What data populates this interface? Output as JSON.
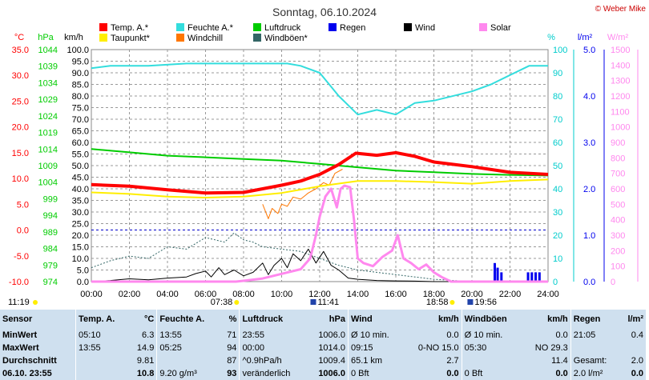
{
  "header": {
    "title": "Sonntag, 06.10.2024",
    "copyright": "© Weber Mike"
  },
  "legend": [
    {
      "label": "Temp. A.*",
      "color": "#ff0000"
    },
    {
      "label": "Feuchte A.*",
      "color": "#33dddd"
    },
    {
      "label": "Luftdruck",
      "color": "#00cc00"
    },
    {
      "label": "Regen",
      "color": "#0000ee"
    },
    {
      "label": "Wind",
      "color": "#000000"
    },
    {
      "label": "Solar",
      "color": "#ff88ee"
    },
    {
      "label": "Taupunkt*",
      "color": "#ffee00"
    },
    {
      "label": "Windchill",
      "color": "#ff7700"
    },
    {
      "label": "Windböen*",
      "color": "#336666"
    }
  ],
  "axis_units": {
    "temp": "°C",
    "pressure": "hPa",
    "wind": "km/h",
    "humidity": "%",
    "rain": "l/m²",
    "solar": "W/m²"
  },
  "axis_colors": {
    "temp": "#ff0000",
    "pressure": "#00cc00",
    "wind": "#000000",
    "humidity": "#00cccc",
    "rain": "#0000ee",
    "solar": "#ff88ee"
  },
  "time_markers": {
    "sunrise": "07:38",
    "sunset": "18:58",
    "moonrise": "11:41",
    "moonset": "19:56",
    "daylength": "11:19"
  },
  "chart_data": {
    "type": "line",
    "title": "Sonntag, 06.10.2024",
    "x_ticks": [
      "00:00",
      "02:00",
      "04:00",
      "06:00",
      "08:00",
      "10:00",
      "12:00",
      "14:00",
      "16:00",
      "18:00",
      "20:00",
      "22:00",
      "24:00"
    ],
    "axes": {
      "temp": {
        "unit": "°C",
        "range": [
          -10,
          35
        ],
        "ticks": [
          "35.0",
          "30.0",
          "25.0",
          "20.0",
          "15.0",
          "10.0",
          "5.0",
          "0.0",
          "-5.0",
          "-10.0"
        ]
      },
      "pressure": {
        "unit": "hPa",
        "range": [
          974,
          1044
        ],
        "ticks": [
          "1044",
          "1039",
          "1034",
          "1029",
          "1024",
          "1019",
          "1014",
          "1009",
          "1004",
          "999",
          "994",
          "989",
          "984",
          "979",
          "974"
        ]
      },
      "wind": {
        "unit": "km/h",
        "range": [
          0,
          100
        ],
        "ticks": [
          "100.0",
          "95.0",
          "90.0",
          "85.0",
          "80.0",
          "75.0",
          "70.0",
          "65.0",
          "60.0",
          "55.0",
          "50.0",
          "45.0",
          "40.0",
          "35.0",
          "30.0",
          "25.0",
          "20.0",
          "15.0",
          "10.0",
          "5.0",
          "0.0"
        ]
      },
      "humidity": {
        "unit": "%",
        "range": [
          0,
          100
        ],
        "ticks": [
          "100",
          "90",
          "80",
          "70",
          "60",
          "50",
          "40",
          "30",
          "20",
          "10",
          "0"
        ]
      },
      "rain": {
        "unit": "l/m²",
        "range": [
          0,
          5
        ],
        "ticks": [
          "5.0",
          "4.0",
          "3.0",
          "2.0",
          "1.0",
          "0.0"
        ]
      },
      "solar": {
        "unit": "W/m²",
        "range": [
          0,
          1500
        ],
        "ticks": [
          "1500",
          "1400",
          "1300",
          "1200",
          "1100",
          "1000",
          "900",
          "800",
          "700",
          "600",
          "500",
          "400",
          "300",
          "200",
          "100",
          "0"
        ]
      }
    },
    "series": [
      {
        "name": "Temp. A.*",
        "axis": "temp",
        "color": "#ff0000",
        "width": 4,
        "points": [
          [
            0,
            8.8
          ],
          [
            2,
            8.5
          ],
          [
            4,
            7.8
          ],
          [
            6,
            7.2
          ],
          [
            8,
            7.3
          ],
          [
            10,
            8.7
          ],
          [
            11,
            9.5
          ],
          [
            12,
            10.8
          ],
          [
            13,
            12.7
          ],
          [
            13.9,
            14.9
          ],
          [
            15,
            14.5
          ],
          [
            16,
            15.0
          ],
          [
            17,
            14.3
          ],
          [
            18,
            13.2
          ],
          [
            20,
            12.3
          ],
          [
            22,
            11.2
          ],
          [
            24,
            10.8
          ]
        ]
      },
      {
        "name": "Feuchte A.*",
        "axis": "humidity",
        "color": "#33dddd",
        "width": 2,
        "points": [
          [
            0,
            92
          ],
          [
            1,
            93
          ],
          [
            3,
            93
          ],
          [
            5,
            94
          ],
          [
            7,
            94
          ],
          [
            9,
            94
          ],
          [
            10.3,
            94
          ],
          [
            11,
            93
          ],
          [
            12,
            90
          ],
          [
            13,
            80
          ],
          [
            14,
            72
          ],
          [
            15,
            74
          ],
          [
            16,
            72
          ],
          [
            17,
            77
          ],
          [
            18,
            78
          ],
          [
            20,
            82
          ],
          [
            21,
            85
          ],
          [
            22,
            89
          ],
          [
            23,
            93
          ],
          [
            24,
            93
          ]
        ]
      },
      {
        "name": "Luftdruck",
        "axis": "pressure",
        "color": "#00cc00",
        "width": 2,
        "points": [
          [
            0,
            1014
          ],
          [
            2,
            1013
          ],
          [
            4,
            1012
          ],
          [
            6,
            1011.5
          ],
          [
            8,
            1011
          ],
          [
            10,
            1010.5
          ],
          [
            12,
            1009.5
          ],
          [
            14,
            1008.5
          ],
          [
            16,
            1007.5
          ],
          [
            18,
            1007
          ],
          [
            20,
            1006.5
          ],
          [
            22,
            1006.2
          ],
          [
            24,
            1006
          ]
        ]
      },
      {
        "name": "Taupunkt*",
        "axis": "temp",
        "color": "#ffee00",
        "width": 2,
        "points": [
          [
            0,
            7.3
          ],
          [
            2,
            7.0
          ],
          [
            4,
            6.5
          ],
          [
            6,
            6.3
          ],
          [
            8,
            6.5
          ],
          [
            10,
            7.2
          ],
          [
            12,
            8.5
          ],
          [
            14,
            9.5
          ],
          [
            16,
            9.5
          ],
          [
            18,
            9.3
          ],
          [
            20,
            9.0
          ],
          [
            22,
            9.5
          ],
          [
            24,
            9.8
          ]
        ]
      },
      {
        "name": "Windchill",
        "axis": "temp",
        "color": "#ff7700",
        "width": 1,
        "points": [
          [
            9,
            5.0
          ],
          [
            9.3,
            2.2
          ],
          [
            9.5,
            4.2
          ],
          [
            9.8,
            3.2
          ],
          [
            10,
            5.0
          ],
          [
            10.3,
            4.6
          ],
          [
            10.6,
            6.4
          ],
          [
            11,
            6.0
          ],
          [
            11.4,
            7.2
          ],
          [
            11.8,
            8.0
          ],
          [
            12.2,
            9.2
          ],
          [
            12.5,
            8.7
          ],
          [
            12.8,
            11.0
          ],
          [
            13.2,
            11.8
          ]
        ]
      },
      {
        "name": "Wind",
        "axis": "wind",
        "color": "#000000",
        "width": 1,
        "points": [
          [
            0,
            0
          ],
          [
            1,
            0.5
          ],
          [
            2,
            1.2
          ],
          [
            3,
            0.8
          ],
          [
            4,
            1.5
          ],
          [
            5,
            2.0
          ],
          [
            5.5,
            3.5
          ],
          [
            6,
            4.5
          ],
          [
            6.3,
            2.0
          ],
          [
            6.7,
            6.0
          ],
          [
            7,
            3.0
          ],
          [
            7.5,
            5.0
          ],
          [
            8,
            2.5
          ],
          [
            8.5,
            4.0
          ],
          [
            9,
            8.0
          ],
          [
            9.3,
            3.0
          ],
          [
            9.6,
            7.0
          ],
          [
            10,
            10.0
          ],
          [
            10.3,
            6.0
          ],
          [
            10.6,
            12.0
          ],
          [
            11,
            9.0
          ],
          [
            11.4,
            14.0
          ],
          [
            11.8,
            8.0
          ],
          [
            12.2,
            13.0
          ],
          [
            12.6,
            7.0
          ],
          [
            13,
            5.0
          ],
          [
            13.5,
            1.5
          ],
          [
            14,
            1.0
          ],
          [
            15,
            0.5
          ],
          [
            16,
            0.3
          ],
          [
            17,
            0.2
          ],
          [
            18,
            0
          ],
          [
            24,
            0
          ]
        ]
      },
      {
        "name": "Windböen*",
        "axis": "wind",
        "color": "#336666",
        "width": 1,
        "points": [
          [
            0,
            6
          ],
          [
            1,
            9
          ],
          [
            2,
            11
          ],
          [
            3,
            10
          ],
          [
            4,
            15
          ],
          [
            5,
            14
          ],
          [
            6,
            19
          ],
          [
            7,
            17
          ],
          [
            7.5,
            21
          ],
          [
            8,
            18
          ],
          [
            8.5,
            17
          ],
          [
            9,
            15
          ],
          [
            10,
            14
          ],
          [
            11,
            13
          ],
          [
            12,
            10
          ],
          [
            13,
            7
          ],
          [
            14,
            5
          ],
          [
            15,
            4
          ],
          [
            16,
            3
          ],
          [
            17,
            2
          ],
          [
            18,
            1
          ],
          [
            19,
            0.5
          ],
          [
            20,
            0
          ],
          [
            24,
            0
          ]
        ]
      },
      {
        "name": "Solar",
        "axis": "solar",
        "color": "#ff88ee",
        "width": 3,
        "points": [
          [
            0,
            0
          ],
          [
            7.6,
            0
          ],
          [
            8,
            5
          ],
          [
            9,
            20
          ],
          [
            10,
            50
          ],
          [
            11,
            80
          ],
          [
            11.5,
            150
          ],
          [
            11.8,
            300
          ],
          [
            12,
            420
          ],
          [
            12.3,
            550
          ],
          [
            12.6,
            600
          ],
          [
            12.9,
            480
          ],
          [
            13.1,
            600
          ],
          [
            13.3,
            620
          ],
          [
            13.6,
            610
          ],
          [
            13.8,
            400
          ],
          [
            14,
            150
          ],
          [
            14.3,
            120
          ],
          [
            14.8,
            100
          ],
          [
            15.3,
            160
          ],
          [
            15.8,
            200
          ],
          [
            16.1,
            300
          ],
          [
            16.4,
            150
          ],
          [
            16.8,
            120
          ],
          [
            17.2,
            80
          ],
          [
            17.6,
            110
          ],
          [
            18,
            60
          ],
          [
            18.4,
            30
          ],
          [
            18.9,
            0
          ],
          [
            24,
            0
          ]
        ]
      },
      {
        "name": "Regen",
        "axis": "rain",
        "color": "#0000ee",
        "type": "bars",
        "points": [
          [
            21.2,
            0.4
          ],
          [
            21.35,
            0.3
          ],
          [
            21.55,
            0.2
          ],
          [
            22.95,
            0.2
          ],
          [
            23.15,
            0.2
          ],
          [
            23.35,
            0.2
          ],
          [
            23.55,
            0.2
          ]
        ]
      }
    ]
  },
  "stats": {
    "headers": [
      "Sensor",
      "Temp. A.",
      "°C",
      "Feuchte A.",
      "%",
      "Luftdruck",
      "hPa",
      "Wind",
      "km/h",
      "Windböen",
      "km/h",
      "Regen",
      "l/m²"
    ],
    "rows": [
      [
        "MinWert",
        "05:10",
        "6.3",
        "13:55",
        "71",
        "23:55",
        "1006.0",
        "Ø 10 min.",
        "0.0",
        "Ø 10 min.",
        "0.0",
        "21:05",
        "0.4"
      ],
      [
        "MaxWert",
        "13:55",
        "14.9",
        "05:25",
        "94",
        "00:00",
        "1014.0",
        "09:15",
        "0-NO 15.0",
        "05:30",
        "NO 29.3",
        "",
        ""
      ],
      [
        "Durchschnitt",
        "",
        "9.81",
        "",
        "87",
        "^0.9hPa/h",
        "1009.4",
        "65.1 km",
        "2.7",
        "",
        "11.4",
        "Gesamt:",
        "2.0"
      ],
      [
        "06.10. 23:55",
        "",
        "10.8",
        "9.20 g/m³",
        "93",
        "veränderlich",
        "1006.0",
        "0 Bft",
        "0.0",
        "0 Bft",
        "0.0",
        "2.0 l/m²",
        "0.0"
      ]
    ]
  }
}
